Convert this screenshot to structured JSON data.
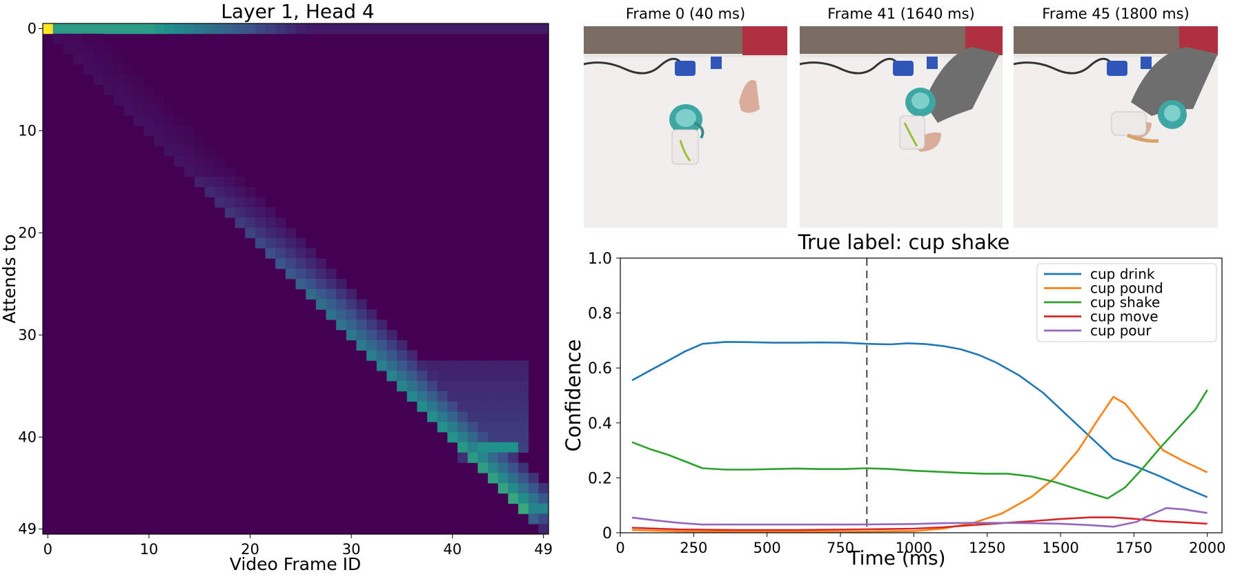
{
  "heatmap": {
    "title": "Layer 1, Head 4",
    "xlabel": "Video Frame ID",
    "ylabel": "Attends to",
    "x_ticks": [
      0,
      10,
      20,
      30,
      40,
      49
    ],
    "y_ticks": [
      0,
      10,
      20,
      30,
      40,
      49
    ],
    "size": 50,
    "colormap": "viridis",
    "colors": {
      "low": "#440154",
      "mid": "#21918c",
      "high": "#fde725"
    }
  },
  "frames": [
    {
      "label": "Frame 0 (40 ms)"
    },
    {
      "label": "Frame 41 (1640 ms)"
    },
    {
      "label": "Frame 45 (1800 ms)"
    }
  ],
  "chart_data": {
    "type": "line",
    "title": "True label: cup shake",
    "xlabel": "Time (ms)",
    "ylabel": "Confidence",
    "xlim": [
      0,
      2050
    ],
    "ylim": [
      0,
      1.0
    ],
    "x_ticks": [
      0,
      250,
      500,
      750,
      1000,
      1250,
      1500,
      1750,
      2000
    ],
    "y_ticks": [
      0,
      0.2,
      0.4,
      0.6,
      0.8,
      1.0
    ],
    "y_tick_labels": [
      "0",
      "0.2",
      "0.4",
      "0.6",
      "0.8",
      "1.0"
    ],
    "vline_x": 840,
    "legend_position": "top-right",
    "series": [
      {
        "name": "cup drink",
        "color": "#1f77b4",
        "x": [
          40,
          100,
          160,
          220,
          280,
          360,
          440,
          520,
          600,
          680,
          760,
          840,
          920,
          980,
          1040,
          1100,
          1160,
          1220,
          1280,
          1360,
          1440,
          1520,
          1600,
          1680,
          1760,
          1840,
          1920,
          2000
        ],
        "y": [
          0.555,
          0.59,
          0.625,
          0.66,
          0.688,
          0.695,
          0.694,
          0.692,
          0.692,
          0.693,
          0.692,
          0.688,
          0.686,
          0.69,
          0.687,
          0.68,
          0.668,
          0.648,
          0.62,
          0.572,
          0.51,
          0.43,
          0.35,
          0.27,
          0.24,
          0.205,
          0.165,
          0.13
        ]
      },
      {
        "name": "cup pound",
        "color": "#ff7f0e",
        "x": [
          40,
          200,
          400,
          600,
          800,
          1000,
          1100,
          1200,
          1300,
          1400,
          1480,
          1560,
          1620,
          1680,
          1720,
          1780,
          1850,
          1920,
          2000
        ],
        "y": [
          0.01,
          0.005,
          0.004,
          0.004,
          0.004,
          0.006,
          0.015,
          0.035,
          0.07,
          0.13,
          0.2,
          0.3,
          0.4,
          0.495,
          0.47,
          0.39,
          0.3,
          0.26,
          0.22
        ]
      },
      {
        "name": "cup shake",
        "color": "#2ca02c",
        "x": [
          40,
          100,
          160,
          220,
          280,
          360,
          440,
          520,
          600,
          680,
          760,
          840,
          920,
          1000,
          1080,
          1160,
          1240,
          1320,
          1400,
          1480,
          1560,
          1620,
          1660,
          1720,
          1780,
          1840,
          1900,
          1960,
          2000
        ],
        "y": [
          0.33,
          0.305,
          0.285,
          0.26,
          0.235,
          0.23,
          0.23,
          0.232,
          0.234,
          0.232,
          0.232,
          0.235,
          0.232,
          0.226,
          0.222,
          0.218,
          0.215,
          0.215,
          0.205,
          0.185,
          0.158,
          0.138,
          0.125,
          0.165,
          0.235,
          0.31,
          0.38,
          0.45,
          0.52
        ]
      },
      {
        "name": "cup move",
        "color": "#d62728",
        "x": [
          40,
          200,
          400,
          600,
          800,
          1000,
          1100,
          1200,
          1300,
          1400,
          1500,
          1600,
          1680,
          1760,
          1840,
          1920,
          2000
        ],
        "y": [
          0.018,
          0.012,
          0.01,
          0.01,
          0.012,
          0.015,
          0.02,
          0.028,
          0.035,
          0.042,
          0.05,
          0.056,
          0.056,
          0.05,
          0.042,
          0.038,
          0.033
        ]
      },
      {
        "name": "cup pour",
        "color": "#9467bd",
        "x": [
          40,
          120,
          200,
          280,
          400,
          600,
          800,
          1000,
          1100,
          1200,
          1300,
          1400,
          1500,
          1600,
          1680,
          1760,
          1800,
          1860,
          1920,
          2000
        ],
        "y": [
          0.055,
          0.045,
          0.036,
          0.03,
          0.03,
          0.03,
          0.03,
          0.032,
          0.035,
          0.036,
          0.036,
          0.035,
          0.033,
          0.028,
          0.022,
          0.04,
          0.062,
          0.09,
          0.085,
          0.072
        ]
      }
    ]
  }
}
